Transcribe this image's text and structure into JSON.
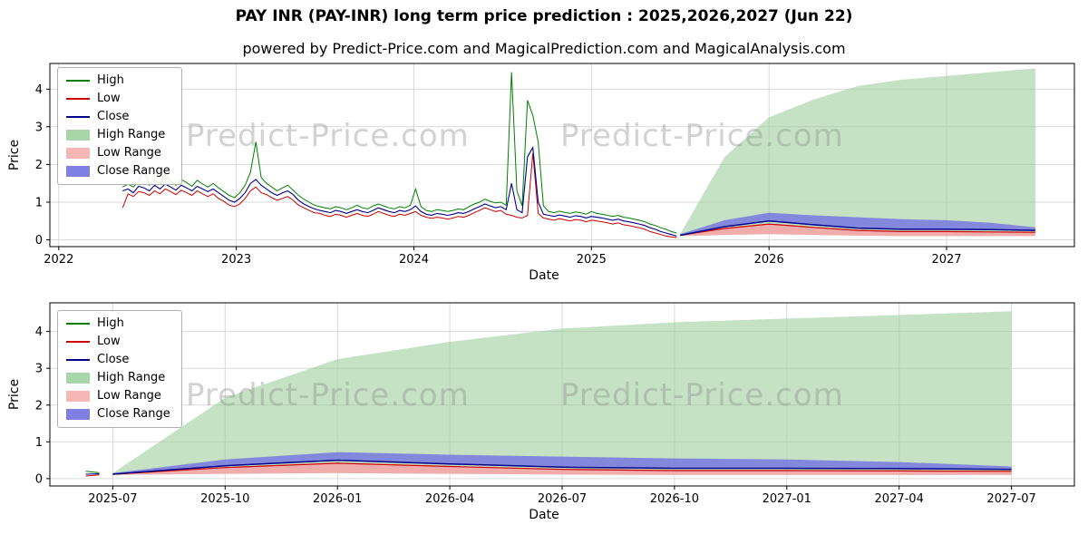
{
  "header": {
    "title": "PAY INR (PAY-INR) long term price prediction : 2025,2026,2027 (Jun 22)",
    "subtitle": "powered by Predict-Price.com and MagicalPrediction.com and MagicalAnalysis.com"
  },
  "watermark": "Predict-Price.com",
  "colors": {
    "high": "#008000",
    "low": "#cc0000",
    "close": "#00008b",
    "high_range": "#9fcf9f",
    "low_range": "#f4a7a7",
    "close_range": "#7878e0",
    "grid": "#d9d9d9"
  },
  "legend": [
    {
      "label": "High",
      "marker": "line",
      "color": "#008000"
    },
    {
      "label": "Low",
      "marker": "line",
      "color": "#cc0000"
    },
    {
      "label": "Close",
      "marker": "line",
      "color": "#00008b"
    },
    {
      "label": "High Range",
      "marker": "patch",
      "color": "#a9d6a9"
    },
    {
      "label": "Low Range",
      "marker": "patch",
      "color": "#f6b6b6"
    },
    {
      "label": "Close Range",
      "marker": "patch",
      "color": "#8080e4"
    }
  ],
  "chart_data": [
    {
      "type": "line",
      "title": "",
      "xlabel": "Date",
      "ylabel": "Price",
      "xlim": [
        2021.95,
        2027.72
      ],
      "ylim": [
        -0.18,
        4.68
      ],
      "xticks": [
        {
          "v": 2022,
          "label": "2022"
        },
        {
          "v": 2023,
          "label": "2023"
        },
        {
          "v": 2024,
          "label": "2024"
        },
        {
          "v": 2025,
          "label": "2025"
        },
        {
          "v": 2026,
          "label": "2026"
        },
        {
          "v": 2027,
          "label": "2027"
        }
      ],
      "yticks": [
        0,
        1,
        2,
        3,
        4
      ],
      "historical": {
        "t0": 2022.36,
        "dt": 0.03,
        "high": [
          1.4,
          1.48,
          1.4,
          1.55,
          1.9,
          1.45,
          1.58,
          1.5,
          1.75,
          1.55,
          1.45,
          1.6,
          1.52,
          1.42,
          1.58,
          1.48,
          1.4,
          1.5,
          1.38,
          1.28,
          1.18,
          1.12,
          1.25,
          1.45,
          1.8,
          2.6,
          1.65,
          1.5,
          1.4,
          1.3,
          1.38,
          1.45,
          1.32,
          1.18,
          1.08,
          1.0,
          0.92,
          0.88,
          0.85,
          0.82,
          0.88,
          0.85,
          0.8,
          0.85,
          0.92,
          0.85,
          0.82,
          0.9,
          0.95,
          0.9,
          0.85,
          0.82,
          0.88,
          0.85,
          0.92,
          1.35,
          0.88,
          0.78,
          0.75,
          0.8,
          0.78,
          0.75,
          0.78,
          0.82,
          0.8,
          0.88,
          0.95,
          1.0,
          1.08,
          1.02,
          0.98,
          1.0,
          0.92,
          4.45,
          1.3,
          0.9,
          3.7,
          3.3,
          2.6,
          0.9,
          0.75,
          0.72,
          0.76,
          0.73,
          0.7,
          0.74,
          0.72,
          0.68,
          0.75,
          0.7,
          0.68,
          0.65,
          0.62,
          0.65,
          0.6,
          0.58,
          0.55,
          0.52,
          0.48,
          0.42,
          0.38,
          0.32,
          0.28,
          0.22,
          0.18
        ],
        "low": [
          0.85,
          1.22,
          1.15,
          1.28,
          1.25,
          1.18,
          1.3,
          1.22,
          1.35,
          1.28,
          1.2,
          1.32,
          1.25,
          1.18,
          1.3,
          1.22,
          1.15,
          1.22,
          1.1,
          1.02,
          0.92,
          0.88,
          0.95,
          1.1,
          1.3,
          1.4,
          1.25,
          1.2,
          1.12,
          1.05,
          1.1,
          1.15,
          1.05,
          0.92,
          0.85,
          0.78,
          0.72,
          0.7,
          0.65,
          0.62,
          0.68,
          0.65,
          0.6,
          0.65,
          0.7,
          0.65,
          0.62,
          0.68,
          0.75,
          0.7,
          0.65,
          0.62,
          0.68,
          0.65,
          0.7,
          0.75,
          0.65,
          0.6,
          0.57,
          0.6,
          0.58,
          0.55,
          0.58,
          0.62,
          0.6,
          0.65,
          0.72,
          0.78,
          0.85,
          0.8,
          0.75,
          0.78,
          0.68,
          0.65,
          0.6,
          0.58,
          0.65,
          2.3,
          0.7,
          0.58,
          0.55,
          0.52,
          0.56,
          0.53,
          0.5,
          0.54,
          0.52,
          0.48,
          0.52,
          0.5,
          0.48,
          0.45,
          0.42,
          0.45,
          0.4,
          0.38,
          0.35,
          0.32,
          0.28,
          0.22,
          0.18,
          0.14,
          0.1,
          0.08,
          0.06
        ],
        "close": [
          1.3,
          1.35,
          1.25,
          1.42,
          1.38,
          1.3,
          1.45,
          1.35,
          1.48,
          1.4,
          1.32,
          1.45,
          1.38,
          1.3,
          1.42,
          1.35,
          1.28,
          1.35,
          1.25,
          1.15,
          1.05,
          1.0,
          1.1,
          1.25,
          1.5,
          1.6,
          1.45,
          1.35,
          1.25,
          1.18,
          1.25,
          1.3,
          1.2,
          1.05,
          0.95,
          0.88,
          0.82,
          0.78,
          0.75,
          0.72,
          0.78,
          0.75,
          0.7,
          0.75,
          0.8,
          0.75,
          0.72,
          0.78,
          0.85,
          0.8,
          0.75,
          0.72,
          0.78,
          0.75,
          0.8,
          0.9,
          0.75,
          0.68,
          0.65,
          0.7,
          0.68,
          0.65,
          0.68,
          0.72,
          0.7,
          0.75,
          0.82,
          0.88,
          0.95,
          0.9,
          0.85,
          0.88,
          0.8,
          1.5,
          0.8,
          0.72,
          2.2,
          2.45,
          1.0,
          0.68,
          0.65,
          0.62,
          0.66,
          0.63,
          0.6,
          0.64,
          0.62,
          0.58,
          0.62,
          0.6,
          0.58,
          0.55,
          0.52,
          0.55,
          0.5,
          0.48,
          0.45,
          0.42,
          0.38,
          0.32,
          0.28,
          0.22,
          0.18,
          0.14,
          0.1
        ]
      },
      "forecast": {
        "t": [
          2025.5,
          2025.75,
          2026.0,
          2026.25,
          2026.5,
          2026.75,
          2027.0,
          2027.25,
          2027.5
        ],
        "high_top": [
          0.15,
          2.2,
          3.25,
          3.72,
          4.08,
          4.25,
          4.35,
          4.45,
          4.55
        ],
        "band_bottom": [
          0.1,
          0.13,
          0.15,
          0.13,
          0.11,
          0.1,
          0.1,
          0.1,
          0.1
        ],
        "low_top": [
          0.12,
          0.3,
          0.42,
          0.33,
          0.25,
          0.22,
          0.22,
          0.21,
          0.2
        ],
        "low_bottom": [
          0.1,
          0.13,
          0.15,
          0.13,
          0.11,
          0.1,
          0.1,
          0.1,
          0.1
        ],
        "close": [
          0.12,
          0.35,
          0.5,
          0.4,
          0.31,
          0.28,
          0.28,
          0.27,
          0.25
        ],
        "close_top": [
          0.15,
          0.52,
          0.72,
          0.65,
          0.6,
          0.55,
          0.52,
          0.45,
          0.33
        ]
      }
    },
    {
      "type": "line",
      "title": "",
      "xlabel": "Date",
      "ylabel": "Price",
      "xlim": [
        2025.36,
        2027.64
      ],
      "ylim": [
        -0.2,
        4.78
      ],
      "xticks": [
        {
          "v": 2025.5,
          "label": "2025-07"
        },
        {
          "v": 2025.75,
          "label": "2025-10"
        },
        {
          "v": 2026.0,
          "label": "2026-01"
        },
        {
          "v": 2026.25,
          "label": "2026-04"
        },
        {
          "v": 2026.5,
          "label": "2026-07"
        },
        {
          "v": 2026.75,
          "label": "2026-10"
        },
        {
          "v": 2027.0,
          "label": "2027-01"
        },
        {
          "v": 2027.25,
          "label": "2027-04"
        },
        {
          "v": 2027.5,
          "label": "2027-07"
        }
      ],
      "yticks": [
        0,
        1,
        2,
        3,
        4
      ],
      "historical": {
        "t0": 2025.44,
        "dt": 0.03,
        "high": [
          0.2,
          0.16
        ],
        "low": [
          0.07,
          0.1
        ],
        "close": [
          0.12,
          0.13
        ]
      },
      "forecast": {
        "t": [
          2025.5,
          2025.75,
          2026.0,
          2026.25,
          2026.5,
          2026.75,
          2027.0,
          2027.25,
          2027.5
        ],
        "high_top": [
          0.15,
          2.2,
          3.25,
          3.72,
          4.08,
          4.25,
          4.35,
          4.45,
          4.55
        ],
        "band_bottom": [
          0.1,
          0.13,
          0.15,
          0.13,
          0.11,
          0.1,
          0.1,
          0.1,
          0.1
        ],
        "low_top": [
          0.12,
          0.3,
          0.42,
          0.33,
          0.25,
          0.22,
          0.22,
          0.21,
          0.2
        ],
        "low_bottom": [
          0.1,
          0.13,
          0.15,
          0.13,
          0.11,
          0.1,
          0.1,
          0.1,
          0.1
        ],
        "close": [
          0.12,
          0.35,
          0.5,
          0.4,
          0.31,
          0.28,
          0.28,
          0.27,
          0.25
        ],
        "close_top": [
          0.15,
          0.52,
          0.72,
          0.65,
          0.6,
          0.55,
          0.52,
          0.45,
          0.33
        ]
      }
    }
  ]
}
